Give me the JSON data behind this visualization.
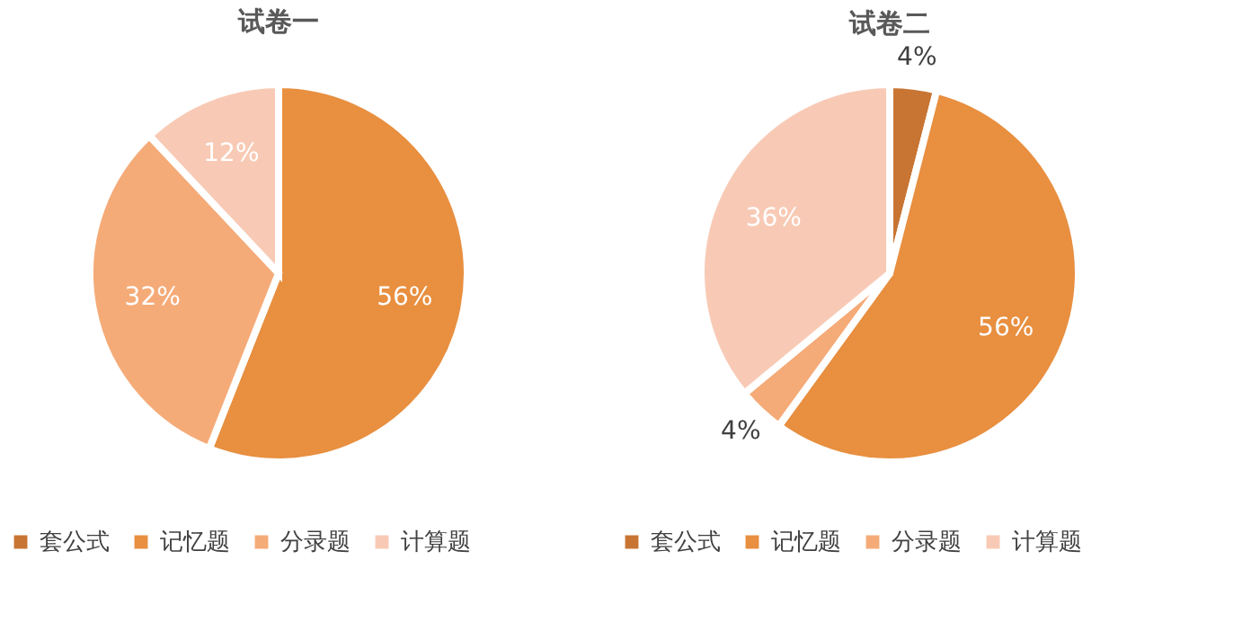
{
  "chart_data": [
    {
      "type": "pie",
      "title": "试卷一",
      "categories": [
        "套公式",
        "记忆题",
        "分录题",
        "计算题"
      ],
      "values": [
        0,
        56,
        32,
        12
      ],
      "colors": [
        "#c87533",
        "#e88f40",
        "#f5ab78",
        "#f8cab5"
      ],
      "value_labels": [
        null,
        "56%",
        "32%",
        "12%"
      ],
      "legend": "bottom"
    },
    {
      "type": "pie",
      "title": "试卷二",
      "categories": [
        "套公式",
        "记忆题",
        "分录题",
        "计算题"
      ],
      "values": [
        4,
        56,
        4,
        36
      ],
      "colors": [
        "#c87533",
        "#e88f40",
        "#f5ab78",
        "#f8cab5"
      ],
      "value_labels": [
        "4%",
        "56%",
        "4%",
        "36%"
      ],
      "legend": "bottom"
    }
  ]
}
